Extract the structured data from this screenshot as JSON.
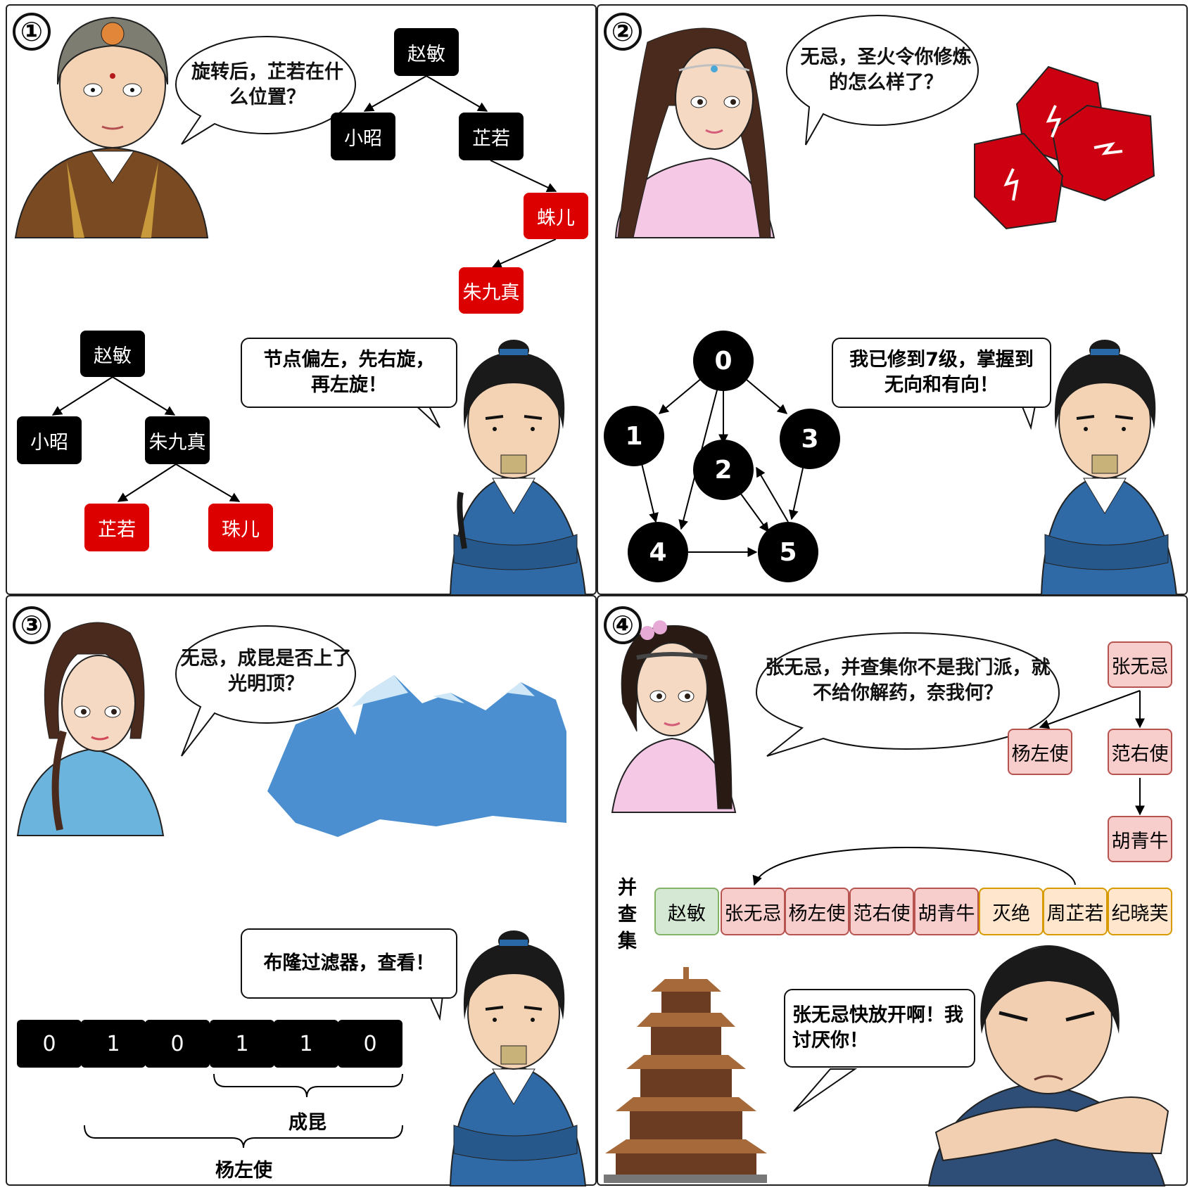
{
  "panels": {
    "p1": {
      "number": "①",
      "question": "旋转后，芷若在什么位置？",
      "answer": "节点偏左，先右旋，再左旋！",
      "tree_before": {
        "root": "赵敏",
        "left": "小昭",
        "right": "芷若",
        "right_child": "蛛儿",
        "right_child_left": "朱九真"
      },
      "tree_after": {
        "root": "赵敏",
        "left": "小昭",
        "right": "朱九真",
        "right_left": "芷若",
        "right_right": "珠儿"
      }
    },
    "p2": {
      "number": "②",
      "question": "无忌，圣火令你修炼的怎么样了？",
      "answer": "我已修到7级，掌握到无向和有向！",
      "graph_nodes": [
        "0",
        "1",
        "2",
        "3",
        "4",
        "5"
      ]
    },
    "p3": {
      "number": "③",
      "question": "无忌，成昆是否上了光明顶？",
      "answer": "布隆过滤器，查看！",
      "bits": [
        "0",
        "1",
        "0",
        "1",
        "1",
        "0"
      ],
      "brace_short": "成昆",
      "brace_long": "杨左使"
    },
    "p4": {
      "number": "④",
      "question": "张无忌，并查集你不是我门派，就不给你解药，奈我何？",
      "answer": "张无忌快放开啊！我讨厌你！",
      "tree": {
        "root": "张无忌",
        "left": "杨左使",
        "right": "范右使",
        "right_child": "胡青牛"
      },
      "uf_label": "并查集",
      "uf_cells": [
        "赵敏",
        "张无忌",
        "杨左使",
        "范右使",
        "胡青牛",
        "灭绝",
        "周芷若",
        "纪晓芙"
      ]
    }
  },
  "colors": {
    "red_node": "#dd0000",
    "pink_fill": "#f8cecc",
    "pink_border": "#b85450",
    "green_fill": "#d5e8d4",
    "green_border": "#82b366",
    "yellow_fill": "#ffe6cc",
    "yellow_border": "#d79b00"
  }
}
